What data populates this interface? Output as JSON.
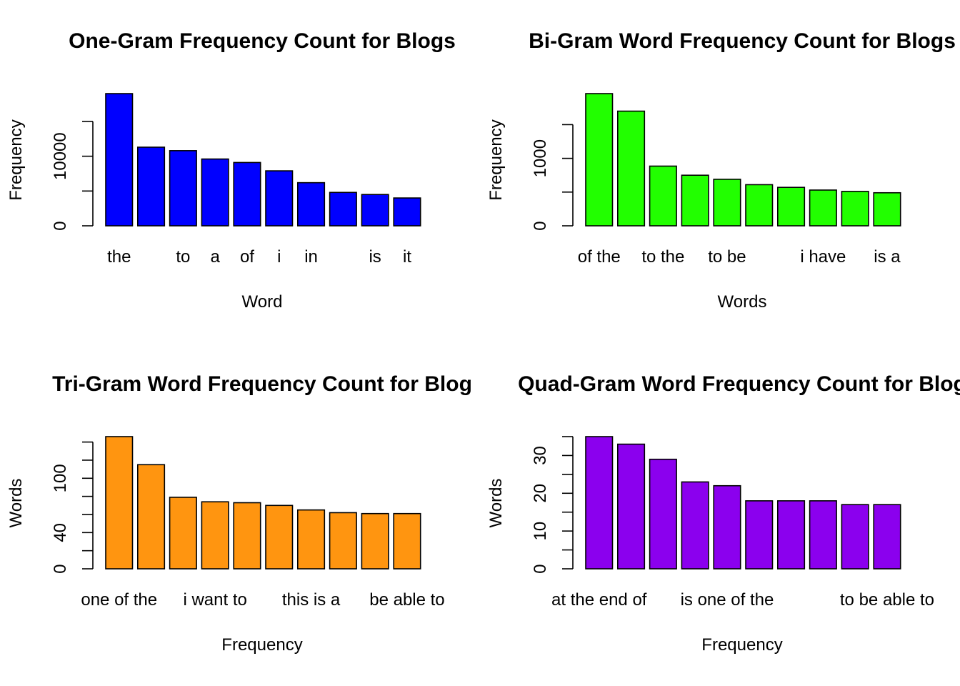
{
  "chart_data": [
    {
      "type": "bar",
      "title": "One-Gram Frequency Count for Blogs",
      "xlabel": "Word",
      "ylabel": "Frequency",
      "categories": [
        "the",
        "",
        "to",
        "a",
        "of",
        "i",
        "in",
        "",
        "is",
        "it"
      ],
      "values": [
        19000,
        11300,
        10800,
        9600,
        9100,
        7900,
        6200,
        4800,
        4500,
        4000
      ],
      "yticks": [
        0,
        5000,
        10000,
        15000
      ],
      "ytick_labels": [
        "0",
        "",
        "10000",
        ""
      ],
      "ylim": [
        0,
        19000
      ],
      "color": "#0000FF"
    },
    {
      "type": "bar",
      "title": "Bi-Gram Word Frequency Count for Blogs",
      "xlabel": "Words",
      "ylabel": "Frequency",
      "categories": [
        "of the",
        "",
        "to the",
        "",
        "to be",
        "",
        "",
        "i have",
        "",
        "is a"
      ],
      "values": [
        1960,
        1700,
        885,
        750,
        690,
        610,
        570,
        530,
        510,
        490
      ],
      "yticks": [
        0,
        500,
        1000,
        1500
      ],
      "ytick_labels": [
        "0",
        "",
        "1000",
        ""
      ],
      "ylim": [
        0,
        1960
      ],
      "color": "#22FF00"
    },
    {
      "type": "bar",
      "title": "Tri-Gram Word Frequency Count for Blog",
      "xlabel": "Frequency",
      "ylabel": "Words",
      "categories": [
        "one of the",
        "",
        "",
        "i want to",
        "",
        "",
        "this is a",
        "",
        "",
        "be able to"
      ],
      "values": [
        146,
        115,
        79,
        74,
        73,
        70,
        65,
        62,
        61,
        61
      ],
      "yticks": [
        0,
        20,
        40,
        60,
        80,
        100,
        120,
        140
      ],
      "ytick_labels": [
        "0",
        "",
        "40",
        "",
        "",
        "100",
        "",
        ""
      ],
      "ylim": [
        0,
        146
      ],
      "color": "#FF9510"
    },
    {
      "type": "bar",
      "title": "Quad-Gram Word Frequency Count for Blog",
      "xlabel": "Frequency",
      "ylabel": "Words",
      "categories": [
        "at the end of",
        "",
        "",
        "",
        "is one of the",
        "",
        "",
        "",
        "",
        "to be able to"
      ],
      "values": [
        35,
        33,
        29,
        23,
        22,
        18,
        18,
        18,
        17,
        17
      ],
      "yticks": [
        0,
        5,
        10,
        15,
        20,
        25,
        30,
        35
      ],
      "ytick_labels": [
        "0",
        "",
        "10",
        "",
        "20",
        "",
        "30",
        ""
      ],
      "ylim": [
        0,
        35
      ],
      "color": "#8B00EE"
    }
  ]
}
